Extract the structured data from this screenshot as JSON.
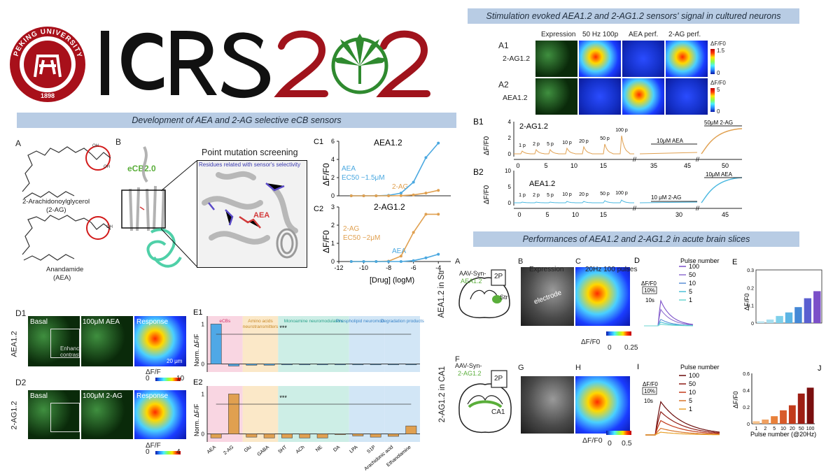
{
  "header": {
    "seal_text": "PEKING UNIVERSITY 1898",
    "logo_text": "ICRS2022",
    "colors": {
      "seal": "#a8101a",
      "logo_dark": "#111111",
      "logo_red": "#a0131c",
      "leaf": "#2f8a2f"
    }
  },
  "left_panel": {
    "banner": "Development of AEA and 2-AG selective eCB sensors",
    "A": {
      "label": "A",
      "mol1_name": "2-Arachidonoylglycerol",
      "mol1_abbr": "(2-AG)",
      "mol2_name": "Anandamide",
      "mol2_abbr": "(AEA)",
      "oh1": "OH",
      "oh2": "OH",
      "oh3": "OH"
    },
    "B": {
      "label": "B",
      "title": "Point mutation screening",
      "sensor": "eCB2.0",
      "residues_note": "Residues related with sensor's selectivity",
      "ligand": "AEA"
    },
    "C1": {
      "label": "C1",
      "title": "AEA1.2",
      "ylabel": "ΔF/F0",
      "aea": "AEA",
      "ec50": "EC50 ~1.5μM",
      "other": "2-AG",
      "yticks": [
        "0",
        "2",
        "4",
        "6"
      ]
    },
    "C2": {
      "label": "C2",
      "title": "2-AG1.2",
      "ylabel": "ΔF/F0",
      "ag": "2-AG",
      "ec50": "EC50 ~2μM",
      "other": "AEA",
      "yticks": [
        "0",
        "1",
        "2",
        "3"
      ]
    },
    "C_xlabel": "[Drug] (logM)",
    "C_xticks": [
      "-12",
      "-10",
      "-8",
      "-6",
      "-4"
    ],
    "D1": {
      "label": "D1",
      "row": "AEA1.2",
      "basal": "Basal",
      "treat": "100μM AEA",
      "response": "Response",
      "note": "Enhanced contrast",
      "scale": "20 μm",
      "cbar_label": "ΔF/F",
      "cbar_min": "0",
      "cbar_max": "10"
    },
    "D2": {
      "label": "D2",
      "row": "2-AG1.2",
      "basal": "Basal",
      "treat": "100μM 2-AG",
      "response": "Response",
      "cbar_label": "ΔF/F",
      "cbar_min": "0",
      "cbar_max": "4"
    },
    "E": {
      "label1": "E1",
      "label2": "E2",
      "ylabel": "Norm. ΔF/F",
      "groups": [
        "eCBs",
        "Amino acids neurotransmitters",
        "Monoamine neuromodulators",
        "Phospholipid neuromodulators",
        "Degradation products"
      ],
      "group_colors": [
        "#f9d6e2",
        "#fbe8c8",
        "#cdeee6",
        "#d2e6f6",
        "#d2e6f6"
      ],
      "group_text_colors": [
        "#d0306a",
        "#c88a2a",
        "#2aa08a",
        "#3a84c8",
        "#3a84c8"
      ],
      "categories": [
        "AEA",
        "2-AG",
        "Glu",
        "GABA",
        "5HT",
        "ACh",
        "NE",
        "DA",
        "LPA",
        "S1P",
        "Arachidonic acid",
        "Ethanolamine"
      ],
      "sig": "***",
      "e1_yticks": [
        "0",
        "1"
      ],
      "e2_yticks": [
        "0",
        "1"
      ]
    }
  },
  "right_top": {
    "banner": "Stimulation evoked AEA1.2 and 2-AG1.2 sensors' signal in cultured neurons",
    "cols": [
      "Expression",
      "50 Hz 100p",
      "AEA perf.",
      "2-AG perf."
    ],
    "A1": {
      "label": "A1",
      "row": "2-AG1.2",
      "cbar_label": "ΔF/F0",
      "cbar_max": "1.5",
      "cbar_min": "0"
    },
    "A2": {
      "label": "A2",
      "row": "AEA1.2",
      "cbar_label": "ΔF/F0",
      "cbar_max": "5",
      "cbar_min": "0"
    },
    "B1": {
      "label": "B1",
      "title": "2-AG1.2",
      "ylabel": "ΔF/F0",
      "yticks": [
        "0",
        "2",
        "4"
      ],
      "pulses": [
        "1 p",
        "2 p",
        "5 p",
        "10 p",
        "20 p",
        "50 p",
        "100 p"
      ],
      "drug1": "10μM AEA",
      "drug2": "50μM 2-AG",
      "xticks": [
        "0",
        "5",
        "10",
        "15",
        "35",
        "45",
        "50"
      ]
    },
    "B2": {
      "label": "B2",
      "title": "AEA1.2",
      "ylabel": "ΔF/F0",
      "yticks": [
        "0",
        "5",
        "10"
      ],
      "pulses": [
        "1 p",
        "2 p",
        "5 p",
        "10 p",
        "20 p",
        "50 p",
        "100 p"
      ],
      "drug1": "10 μM 2-AG",
      "drug2": "10μM AEA",
      "xticks": [
        "0",
        "5",
        "10",
        "15",
        "30",
        "45"
      ]
    }
  },
  "right_bottom": {
    "banner": "Performances of AEA1.2 and 2-AG1.2 in acute brain slices",
    "row1": {
      "side": "AEA1.2 in Str",
      "A": "A",
      "B": "B",
      "C": "C",
      "D": "D",
      "E": "E",
      "virus": "AAV-Syn-",
      "virus_sensor": "AEA1.2",
      "probe": "2P",
      "region": "Str",
      "expression": "Expression",
      "electrode": "electrode",
      "stim": "20Hz 100 pulses",
      "cbar_label": "ΔF/F0",
      "cbar_min": "0",
      "cbar_max": "0.25",
      "legend_title": "Pulse number",
      "pulses": [
        "100",
        "50",
        "10",
        "5",
        "1"
      ],
      "pulse_colors": [
        "#7b4fc8",
        "#8f6fd0",
        "#5a8fd6",
        "#4cc0d8",
        "#6ad6d0"
      ],
      "scale_y": "10%",
      "scale_x": "10s",
      "scale_label": "ΔF/F0",
      "e_ylabel": "ΔF/F0",
      "e_yticks": [
        "0",
        "0.1",
        "0.2",
        "0.3"
      ],
      "e_values": [
        0.01,
        0.02,
        0.04,
        0.06,
        0.09,
        0.14,
        0.18
      ],
      "e_colors": [
        "#bfe7f3",
        "#a7dff0",
        "#7fd0ea",
        "#5cb5e4",
        "#4488d6",
        "#5a5fd0",
        "#7b4fc8"
      ]
    },
    "row2": {
      "side": "2-AG1.2 in CA1",
      "F": "F",
      "G": "G",
      "H": "H",
      "I": "I",
      "J": "J",
      "virus": "AAV-Syn-",
      "virus_sensor": "2-AG1.2",
      "probe": "2P",
      "region": "CA1",
      "cbar_label": "ΔF/F0",
      "cbar_min": "0",
      "cbar_max": "0.5",
      "legend_title": "Pulse number",
      "pulses": [
        "100",
        "50",
        "10",
        "5",
        "1"
      ],
      "pulse_colors": [
        "#6a0a0a",
        "#8e1a14",
        "#c23a1a",
        "#d8742a",
        "#e8a02a"
      ],
      "scale_y": "10%",
      "scale_x": "10s",
      "scale_label": "ΔF/F0",
      "j_ylabel": "ΔF/F0",
      "j_yticks": [
        "0",
        "0.2",
        "0.4",
        "0.6"
      ],
      "j_categories": [
        "1",
        "2",
        "5",
        "10",
        "20",
        "50",
        "100"
      ],
      "j_values": [
        0.03,
        0.05,
        0.09,
        0.16,
        0.22,
        0.36,
        0.43
      ],
      "j_colors": [
        "#f7c28a",
        "#f0a060",
        "#e8803a",
        "#d85a2a",
        "#c23a1a",
        "#9e1e14",
        "#7a0e0e"
      ],
      "j_xlabel": "Pulse number (@20Hz)"
    }
  },
  "chart_data": [
    {
      "type": "line",
      "title": "AEA1.2",
      "xlabel": "[Drug] (logM)",
      "ylabel": "ΔF/F0",
      "x": [
        -11,
        -10,
        -9,
        -8,
        -7,
        -6,
        -5,
        -4
      ],
      "series": [
        {
          "name": "AEA",
          "values": [
            0,
            0,
            0,
            0.05,
            0.3,
            1.5,
            4.2,
            5.8
          ]
        },
        {
          "name": "2-AG",
          "values": [
            0,
            0,
            0,
            0,
            0.02,
            0.1,
            0.3,
            0.6
          ]
        }
      ],
      "ylim": [
        0,
        6
      ]
    },
    {
      "type": "line",
      "title": "2-AG1.2",
      "xlabel": "[Drug] (logM)",
      "ylabel": "ΔF/F0",
      "x": [
        -11,
        -10,
        -9,
        -8,
        -7,
        -6,
        -5,
        -4
      ],
      "series": [
        {
          "name": "2-AG",
          "values": [
            0,
            0,
            0,
            0.02,
            0.3,
            1.6,
            2.6,
            2.6
          ]
        },
        {
          "name": "AEA",
          "values": [
            0,
            0,
            0,
            0,
            0,
            0.05,
            0.2,
            0.4
          ]
        }
      ],
      "ylim": [
        0,
        3
      ]
    },
    {
      "type": "bar",
      "title": "E1",
      "ylabel": "Norm. ΔF/F",
      "categories": [
        "AEA",
        "2-AG",
        "Glu",
        "GABA",
        "5HT",
        "ACh",
        "NE",
        "DA",
        "LPA",
        "S1P",
        "Arachidonic acid",
        "Ethanolamine"
      ],
      "values": [
        1.0,
        -0.05,
        -0.03,
        -0.03,
        -0.02,
        -0.02,
        -0.02,
        -0.02,
        -0.02,
        -0.02,
        -0.02,
        -0.02
      ],
      "ylim": [
        -0.2,
        1.2
      ]
    },
    {
      "type": "bar",
      "title": "E2",
      "ylabel": "Norm. ΔF/F",
      "categories": [
        "AEA",
        "2-AG",
        "Glu",
        "GABA",
        "5HT",
        "ACh",
        "NE",
        "DA",
        "LPA",
        "S1P",
        "Arachidonic acid",
        "Ethanolamine"
      ],
      "values": [
        -0.1,
        1.0,
        -0.08,
        -0.1,
        -0.1,
        -0.1,
        -0.1,
        0.0,
        -0.05,
        -0.08,
        -0.06,
        0.2
      ],
      "ylim": [
        -0.2,
        1.2
      ]
    }
  ]
}
